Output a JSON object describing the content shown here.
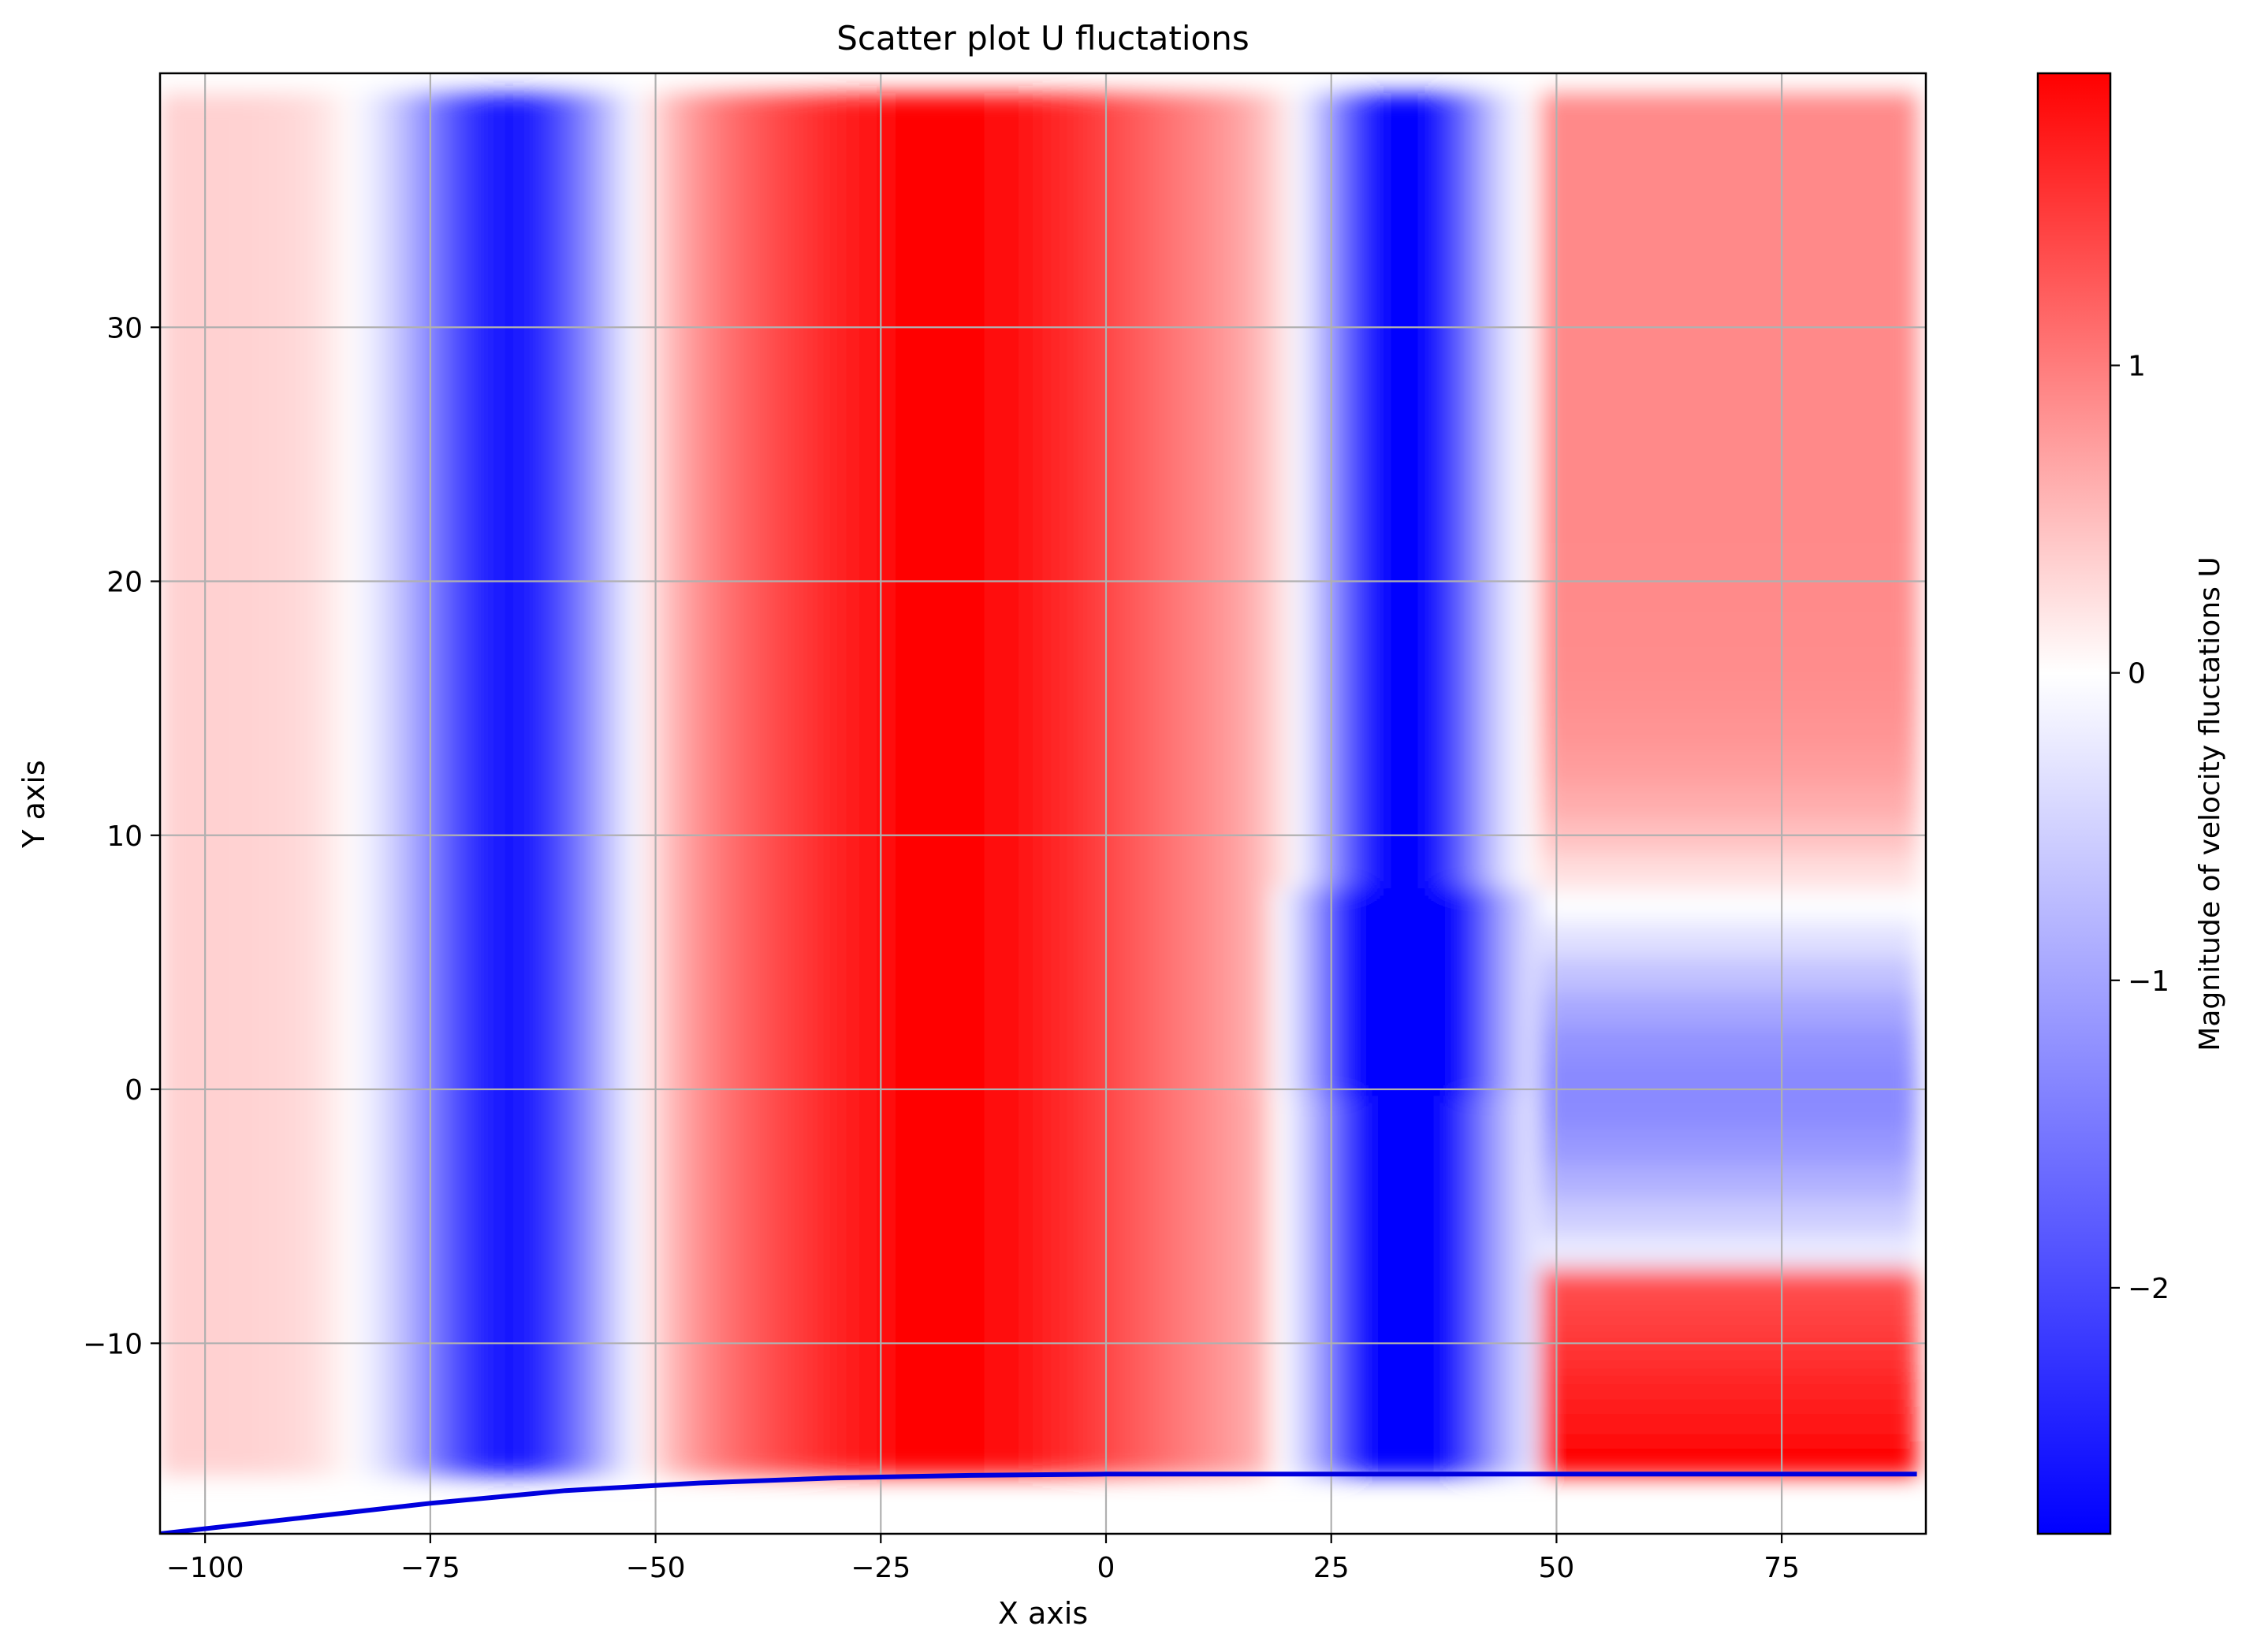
{
  "chart_data": {
    "type": "heatmap",
    "title": "Scatter plot U fluctations",
    "xlabel": "X axis",
    "ylabel": "Y axis",
    "xlim": [
      -105,
      91
    ],
    "ylim": [
      -17.5,
      40
    ],
    "xticks": [
      -100,
      -75,
      -50,
      -25,
      0,
      25,
      50,
      75
    ],
    "yticks": [
      -10,
      0,
      10,
      20,
      30
    ],
    "xtick_labels": [
      "−100",
      "−75",
      "−50",
      "−25",
      "0",
      "25",
      "50",
      "75"
    ],
    "ytick_labels": [
      "−10",
      "0",
      "10",
      "20",
      "30"
    ],
    "grid": true,
    "colormap": "bwr",
    "colors": {
      "low": "#0000ff",
      "mid": "#ffffff",
      "high": "#ff0000",
      "wall_line": "#0000dd",
      "grid": "#b0b0b0"
    },
    "colorbar": {
      "label": "Magnitude of velocity fluctations U",
      "range": [
        -2.8,
        1.95
      ],
      "ticks": [
        1,
        0,
        -1,
        -2
      ],
      "tick_labels": [
        "1",
        "0",
        "−1",
        "−2"
      ]
    },
    "field_description": "Vertical banded U-velocity fluctuation field above a curved wall; blue band near x=-65, strong red band from x=-45 to x=15, blue band near x=33, reddish region for x>50 above y=8 with a bluish wake between y=-7 and y=7",
    "wall_curve": {
      "x": [
        -105,
        -90,
        -75,
        -60,
        -45,
        -30,
        -15,
        0,
        15,
        30,
        45,
        60,
        75,
        90
      ],
      "y": [
        -17.5,
        -16.9,
        -16.3,
        -15.8,
        -15.5,
        -15.3,
        -15.2,
        -15.15,
        -15.15,
        -15.15,
        -15.15,
        -15.15,
        -15.15,
        -15.15
      ]
    }
  }
}
